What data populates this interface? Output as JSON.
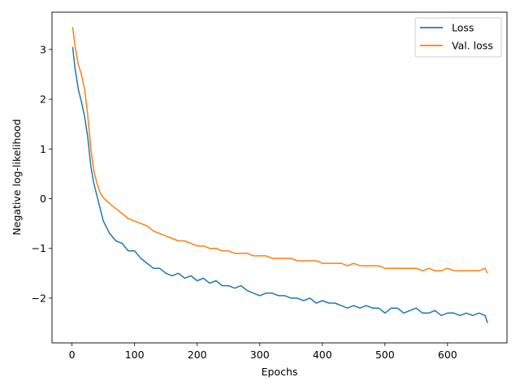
{
  "chart_data": {
    "type": "line",
    "title": "",
    "xlabel": "Epochs",
    "ylabel": "Negative log-likelihood",
    "xlim": [
      -32,
      695
    ],
    "ylim": [
      -2.9,
      3.75
    ],
    "xticks": [
      0,
      100,
      200,
      300,
      400,
      500,
      600
    ],
    "xtick_labels": [
      "0",
      "100",
      "200",
      "300",
      "400",
      "500",
      "600"
    ],
    "yticks": [
      -2,
      -1,
      0,
      1,
      2,
      3
    ],
    "ytick_labels": [
      "−2",
      "−1",
      "0",
      "1",
      "2",
      "3"
    ],
    "grid": false,
    "legend_position": "top-right",
    "series": [
      {
        "name": "Loss",
        "color": "#1f77b4",
        "x": [
          1,
          5,
          10,
          15,
          20,
          25,
          30,
          35,
          40,
          45,
          50,
          60,
          70,
          80,
          90,
          100,
          110,
          120,
          130,
          140,
          150,
          160,
          170,
          180,
          190,
          200,
          210,
          220,
          230,
          240,
          250,
          260,
          270,
          280,
          290,
          300,
          310,
          320,
          330,
          340,
          350,
          360,
          370,
          380,
          390,
          400,
          410,
          420,
          430,
          440,
          450,
          460,
          470,
          480,
          490,
          500,
          510,
          520,
          530,
          540,
          550,
          560,
          570,
          580,
          590,
          600,
          610,
          620,
          630,
          640,
          650,
          660,
          664
        ],
        "y": [
          3.05,
          2.6,
          2.2,
          1.95,
          1.65,
          1.25,
          0.65,
          0.3,
          0.05,
          -0.2,
          -0.45,
          -0.7,
          -0.85,
          -0.9,
          -1.05,
          -1.05,
          -1.2,
          -1.3,
          -1.4,
          -1.4,
          -1.5,
          -1.55,
          -1.5,
          -1.6,
          -1.55,
          -1.65,
          -1.6,
          -1.7,
          -1.65,
          -1.75,
          -1.75,
          -1.8,
          -1.75,
          -1.85,
          -1.9,
          -1.95,
          -1.9,
          -1.9,
          -1.95,
          -1.95,
          -2.0,
          -2.0,
          -2.05,
          -2.0,
          -2.1,
          -2.05,
          -2.1,
          -2.1,
          -2.15,
          -2.2,
          -2.15,
          -2.2,
          -2.15,
          -2.2,
          -2.2,
          -2.3,
          -2.2,
          -2.2,
          -2.3,
          -2.25,
          -2.2,
          -2.3,
          -2.3,
          -2.25,
          -2.35,
          -2.3,
          -2.3,
          -2.35,
          -2.3,
          -2.35,
          -2.3,
          -2.35,
          -2.5
        ]
      },
      {
        "name": "Val. loss",
        "color": "#ff7f0e",
        "x": [
          1,
          5,
          10,
          15,
          20,
          25,
          30,
          35,
          40,
          45,
          50,
          60,
          70,
          80,
          90,
          100,
          110,
          120,
          130,
          140,
          150,
          160,
          170,
          180,
          190,
          200,
          210,
          220,
          230,
          240,
          250,
          260,
          270,
          280,
          290,
          300,
          310,
          320,
          330,
          340,
          350,
          360,
          370,
          380,
          390,
          400,
          410,
          420,
          430,
          440,
          450,
          460,
          470,
          480,
          490,
          500,
          510,
          520,
          530,
          540,
          550,
          560,
          570,
          580,
          590,
          600,
          610,
          620,
          630,
          640,
          650,
          660,
          664
        ],
        "y": [
          3.45,
          3.05,
          2.7,
          2.5,
          2.2,
          1.7,
          1.0,
          0.55,
          0.3,
          0.12,
          0.02,
          -0.1,
          -0.2,
          -0.3,
          -0.4,
          -0.45,
          -0.5,
          -0.55,
          -0.65,
          -0.7,
          -0.75,
          -0.8,
          -0.85,
          -0.85,
          -0.9,
          -0.95,
          -0.95,
          -1.0,
          -1.0,
          -1.05,
          -1.05,
          -1.1,
          -1.1,
          -1.1,
          -1.15,
          -1.15,
          -1.15,
          -1.2,
          -1.2,
          -1.2,
          -1.2,
          -1.25,
          -1.25,
          -1.25,
          -1.25,
          -1.3,
          -1.3,
          -1.3,
          -1.3,
          -1.35,
          -1.3,
          -1.35,
          -1.35,
          -1.35,
          -1.35,
          -1.4,
          -1.4,
          -1.4,
          -1.4,
          -1.4,
          -1.4,
          -1.45,
          -1.4,
          -1.45,
          -1.45,
          -1.4,
          -1.45,
          -1.45,
          -1.45,
          -1.45,
          -1.45,
          -1.4,
          -1.5
        ]
      }
    ]
  }
}
